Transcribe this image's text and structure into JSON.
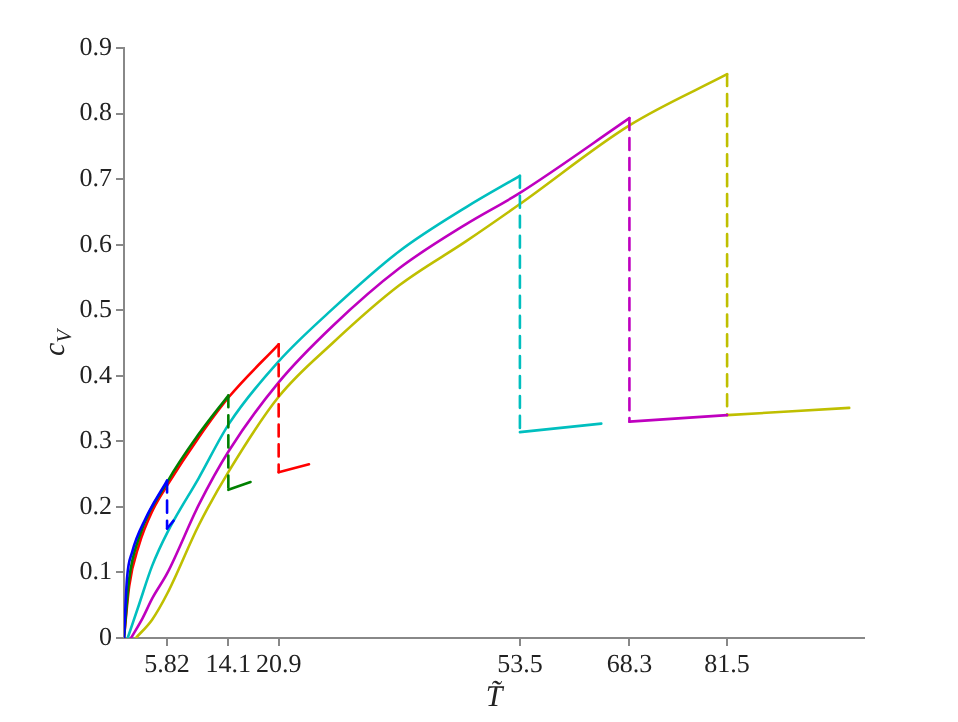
{
  "chart_data": {
    "type": "line",
    "xlabel": "T̃",
    "ylabel": "c$_{V}$",
    "xlim": [
      0,
      100
    ],
    "xticks": [
      5.82,
      14.1,
      20.9,
      53.5,
      68.3,
      81.5
    ],
    "ylim": [
      0,
      0.9
    ],
    "yticks": [
      0,
      0.1,
      0.2,
      0.3,
      0.4,
      0.5,
      0.6,
      0.7,
      0.8,
      0.9
    ],
    "grid": false,
    "legend": false,
    "marker": "none",
    "series": [
      {
        "color": "#0000ff",
        "line_style": "solid",
        "x": [
          0,
          0.4,
          1.1,
          2.9,
          5.82
        ],
        "values": [
          0,
          0.09,
          0.131,
          0.182,
          0.24
        ]
      },
      {
        "color": "#0000ff",
        "line_style": "dashed",
        "x": [
          5.82,
          5.82
        ],
        "values": [
          0.24,
          0.167
        ]
      },
      {
        "color": "#0000ff",
        "line_style": "solid",
        "x": [
          5.82,
          6.7
        ],
        "values": [
          0.167,
          0.179
        ]
      },
      {
        "color": "#008000",
        "line_style": "solid",
        "x": [
          0,
          0.7,
          2.0,
          5.9,
          10.1,
          14.1
        ],
        "values": [
          0,
          0.09,
          0.152,
          0.239,
          0.311,
          0.37
        ]
      },
      {
        "color": "#008000",
        "line_style": "dashed",
        "x": [
          14.1,
          14.1
        ],
        "values": [
          0.37,
          0.226
        ]
      },
      {
        "color": "#008000",
        "line_style": "solid",
        "x": [
          14.1,
          17.1
        ],
        "values": [
          0.226,
          0.238
        ]
      },
      {
        "color": "#ff0000",
        "line_style": "solid",
        "x": [
          0,
          0.7,
          2.0,
          3.8,
          5.9,
          10.1,
          14.2,
          20.9
        ],
        "values": [
          0,
          0.079,
          0.141,
          0.193,
          0.234,
          0.306,
          0.368,
          0.448
        ]
      },
      {
        "color": "#ff0000",
        "line_style": "dashed",
        "x": [
          20.9,
          20.9
        ],
        "values": [
          0.448,
          0.253
        ]
      },
      {
        "color": "#ff0000",
        "line_style": "solid",
        "x": [
          20.9,
          25
        ],
        "values": [
          0.253,
          0.265
        ]
      },
      {
        "color": "#00bfbf",
        "line_style": "solid",
        "x": [
          0.5,
          2.0,
          3.8,
          5.9,
          10.1,
          14.2,
          20.9,
          28.2,
          37.2,
          46.2,
          53.5
        ],
        "values": [
          0,
          0.05,
          0.11,
          0.162,
          0.244,
          0.327,
          0.422,
          0.502,
          0.59,
          0.657,
          0.705
        ]
      },
      {
        "color": "#00bfbf",
        "line_style": "dashed",
        "x": [
          53.5,
          53.5
        ],
        "values": [
          0.705,
          0.314
        ]
      },
      {
        "color": "#00bfbf",
        "line_style": "solid",
        "x": [
          53.5,
          64.5
        ],
        "values": [
          0.314,
          0.327
        ]
      },
      {
        "color": "#bf00bf",
        "line_style": "solid",
        "x": [
          0.95,
          2.5,
          3.8,
          5.9,
          10.1,
          14.2,
          20.9,
          28.2,
          37.2,
          46.2,
          53.5,
          68.3
        ],
        "values": [
          0,
          0.03,
          0.06,
          0.1,
          0.203,
          0.286,
          0.39,
          0.476,
          0.564,
          0.631,
          0.679,
          0.793
        ]
      },
      {
        "color": "#bf00bf",
        "line_style": "dashed",
        "x": [
          68.3,
          68.3
        ],
        "values": [
          0.793,
          0.33
        ]
      },
      {
        "color": "#bf00bf",
        "line_style": "solid",
        "x": [
          68.3,
          81.5
        ],
        "values": [
          0.33,
          0.34
        ]
      },
      {
        "color": "#bfbf00",
        "line_style": "solid",
        "x": [
          1.6,
          3.8,
          5.9,
          10.1,
          14.2,
          20.9,
          28.2,
          37.2,
          46.2,
          53.5,
          68.3,
          81.5
        ],
        "values": [
          0,
          0.028,
          0.069,
          0.172,
          0.255,
          0.368,
          0.45,
          0.538,
          0.605,
          0.662,
          0.782,
          0.86
        ]
      },
      {
        "color": "#bfbf00",
        "line_style": "dashed",
        "x": [
          81.5,
          81.5
        ],
        "values": [
          0.86,
          0.34
        ]
      },
      {
        "color": "#bfbf00",
        "line_style": "solid",
        "x": [
          81.5,
          98
        ],
        "values": [
          0.34,
          0.351
        ]
      }
    ]
  }
}
